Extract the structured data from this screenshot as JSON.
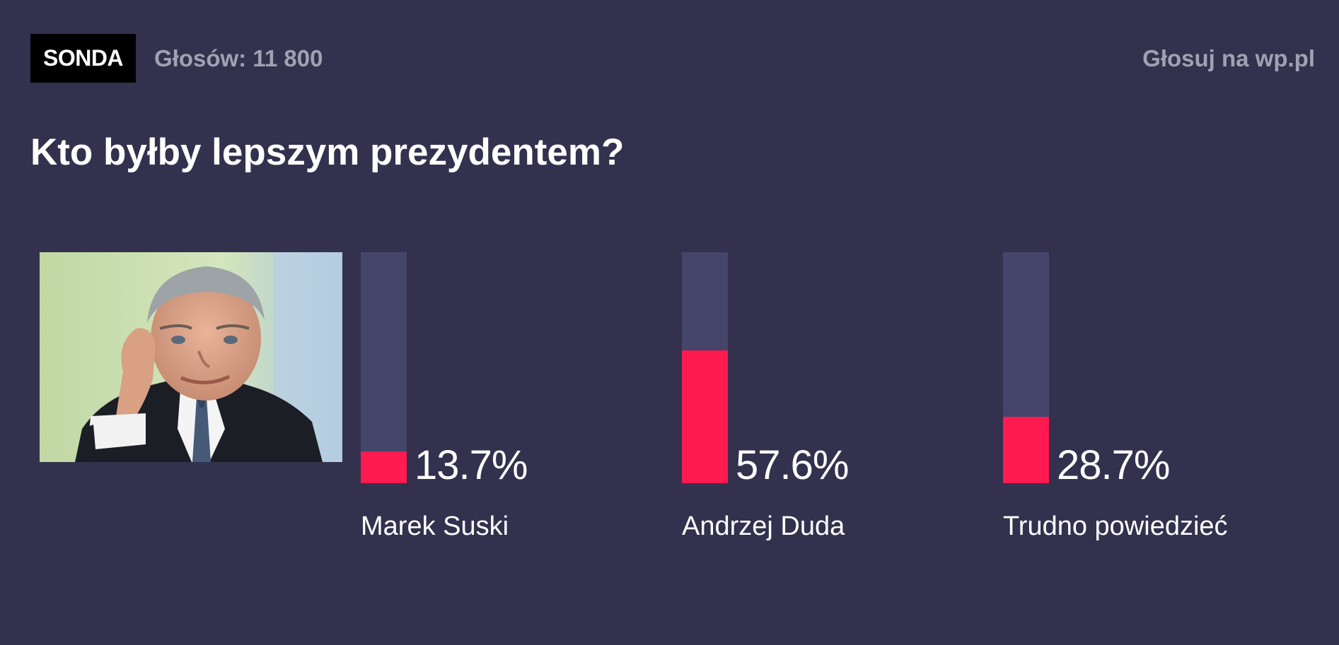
{
  "header": {
    "badge": "SONDA",
    "votes": "Głosów: 11 800",
    "vote_link": "Głosuj na wp.pl"
  },
  "question": "Kto byłby lepszym prezydentem?",
  "colors": {
    "background": "#33314d",
    "track": "#45446a",
    "fill": "#ff1a50",
    "muted_text": "#a2a0b2",
    "badge_bg": "#000000"
  },
  "photo": {
    "icon": "portrait-photo"
  },
  "chart_data": {
    "type": "bar",
    "orientation": "vertical",
    "title": "Kto byłby lepszym prezydentem?",
    "categories": [
      "Marek Suski",
      "Andrzej Duda",
      "Trudno powiedzieć"
    ],
    "values": [
      13.7,
      57.6,
      28.7
    ],
    "value_labels": [
      "13.7%",
      "57.6%",
      "28.7%"
    ],
    "unit": "%",
    "ylim": [
      0,
      100
    ],
    "grid": false,
    "legend": "none"
  }
}
